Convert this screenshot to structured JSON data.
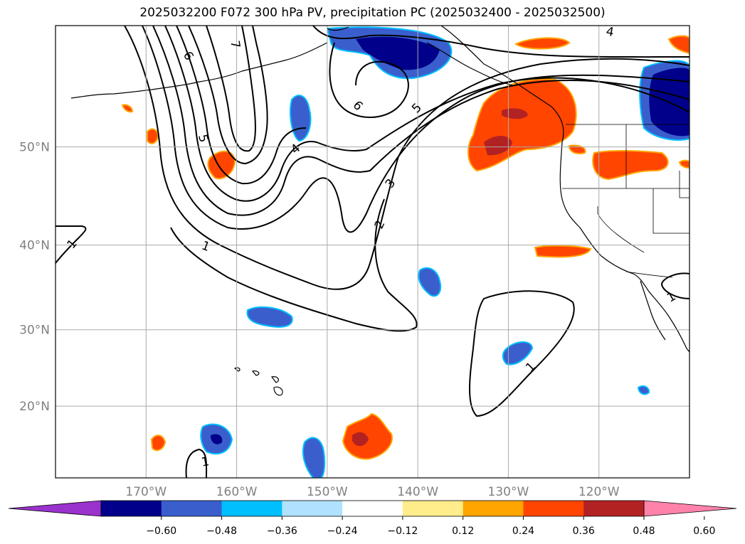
{
  "title": "2025032200 F072 300 hPa PV, precipitation PC (2025032400 - 2025032500)",
  "map": {
    "lon_ticks": [
      {
        "value": -170,
        "label": "170°W"
      },
      {
        "value": -160,
        "label": "160°W"
      },
      {
        "value": -150,
        "label": "150°W"
      },
      {
        "value": -140,
        "label": "140°W"
      },
      {
        "value": -130,
        "label": "130°W"
      },
      {
        "value": -120,
        "label": "120°W"
      }
    ],
    "lat_ticks": [
      {
        "value": 20,
        "label": "20°N"
      },
      {
        "value": 30,
        "label": "30°N"
      },
      {
        "value": 40,
        "label": "40°N"
      },
      {
        "value": 50,
        "label": "50°N"
      }
    ],
    "lon_range": [
      -180,
      -110
    ],
    "lat_range": [
      10,
      60
    ],
    "grid": true,
    "pv_contour_labels": [
      "1",
      "1",
      "1",
      "1",
      "1",
      "2",
      "3",
      "4",
      "4",
      "5",
      "5",
      "6",
      "6",
      "7"
    ]
  },
  "colorbar": {
    "ticks": [
      "−0.60",
      "−0.48",
      "−0.36",
      "−0.24",
      "−0.12",
      "0.12",
      "0.24",
      "0.36",
      "0.48",
      "0.60"
    ],
    "colors": [
      "#9a32cd",
      "#00008b",
      "#3a5fcd",
      "#00bfff",
      "#b0e2ff",
      "#ffffff",
      "#ffec8b",
      "#ffa500",
      "#ff4500",
      "#b22222",
      "#ff82ab"
    ],
    "extend": "both"
  }
}
